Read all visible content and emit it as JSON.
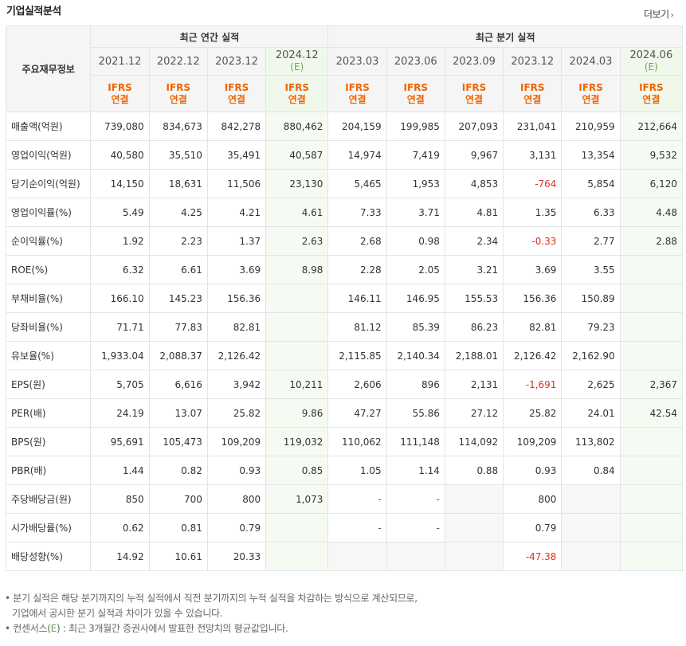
{
  "title": "기업실적분석",
  "more_label": "더보기",
  "more_arrow": "›",
  "header": {
    "row_label": "주요재무정보",
    "annual_group": "최근 연간 실적",
    "quarter_group": "최근 분기 실적",
    "periods": [
      {
        "label": "2021.12",
        "est": ""
      },
      {
        "label": "2022.12",
        "est": ""
      },
      {
        "label": "2023.12",
        "est": ""
      },
      {
        "label": "2024.12",
        "est": "(E)"
      },
      {
        "label": "2023.03",
        "est": ""
      },
      {
        "label": "2023.06",
        "est": ""
      },
      {
        "label": "2023.09",
        "est": ""
      },
      {
        "label": "2023.12",
        "est": ""
      },
      {
        "label": "2024.03",
        "est": ""
      },
      {
        "label": "2024.06",
        "est": "(E)"
      }
    ],
    "basis_top": "IFRS",
    "basis_bottom": "연결"
  },
  "rows": [
    {
      "label": "매출액(억원)",
      "values": [
        "739,080",
        "834,673",
        "842,278",
        "880,462",
        "204,159",
        "199,985",
        "207,093",
        "231,041",
        "210,959",
        "212,664"
      ]
    },
    {
      "label": "영업이익(억원)",
      "values": [
        "40,580",
        "35,510",
        "35,491",
        "40,587",
        "14,974",
        "7,419",
        "9,967",
        "3,131",
        "13,354",
        "9,532"
      ]
    },
    {
      "label": "당기순이익(억원)",
      "values": [
        "14,150",
        "18,631",
        "11,506",
        "23,130",
        "5,465",
        "1,953",
        "4,853",
        "-764",
        "5,854",
        "6,120"
      ]
    },
    {
      "label": "영업이익률(%)",
      "values": [
        "5.49",
        "4.25",
        "4.21",
        "4.61",
        "7.33",
        "3.71",
        "4.81",
        "1.35",
        "6.33",
        "4.48"
      ]
    },
    {
      "label": "순이익률(%)",
      "values": [
        "1.92",
        "2.23",
        "1.37",
        "2.63",
        "2.68",
        "0.98",
        "2.34",
        "-0.33",
        "2.77",
        "2.88"
      ]
    },
    {
      "label": "ROE(%)",
      "values": [
        "6.32",
        "6.61",
        "3.69",
        "8.98",
        "2.28",
        "2.05",
        "3.21",
        "3.69",
        "3.55",
        ""
      ]
    },
    {
      "label": "부채비율(%)",
      "values": [
        "166.10",
        "145.23",
        "156.36",
        "",
        "146.11",
        "146.95",
        "155.53",
        "156.36",
        "150.89",
        ""
      ]
    },
    {
      "label": "당좌비율(%)",
      "values": [
        "71.71",
        "77.83",
        "82.81",
        "",
        "81.12",
        "85.39",
        "86.23",
        "82.81",
        "79.23",
        ""
      ]
    },
    {
      "label": "유보율(%)",
      "values": [
        "1,933.04",
        "2,088.37",
        "2,126.42",
        "",
        "2,115.85",
        "2,140.34",
        "2,188.01",
        "2,126.42",
        "2,162.90",
        ""
      ]
    },
    {
      "label": "EPS(원)",
      "values": [
        "5,705",
        "6,616",
        "3,942",
        "10,211",
        "2,606",
        "896",
        "2,131",
        "-1,691",
        "2,625",
        "2,367"
      ]
    },
    {
      "label": "PER(배)",
      "values": [
        "24.19",
        "13.07",
        "25.82",
        "9.86",
        "47.27",
        "55.86",
        "27.12",
        "25.82",
        "24.01",
        "42.54"
      ]
    },
    {
      "label": "BPS(원)",
      "values": [
        "95,691",
        "105,473",
        "109,209",
        "119,032",
        "110,062",
        "111,148",
        "114,092",
        "109,209",
        "113,802",
        ""
      ]
    },
    {
      "label": "PBR(배)",
      "values": [
        "1.44",
        "0.82",
        "0.93",
        "0.85",
        "1.05",
        "1.14",
        "0.88",
        "0.93",
        "0.84",
        ""
      ]
    },
    {
      "label": "주당배당금(원)",
      "values": [
        "850",
        "700",
        "800",
        "1,073",
        "-",
        "-",
        "",
        "800",
        "",
        ""
      ]
    },
    {
      "label": "시가배당률(%)",
      "values": [
        "0.62",
        "0.81",
        "0.79",
        "",
        "-",
        "-",
        "",
        "0.79",
        "",
        ""
      ]
    },
    {
      "label": "배당성향(%)",
      "values": [
        "14.92",
        "10.61",
        "20.33",
        "",
        "",
        "",
        "",
        "-47.38",
        "",
        ""
      ]
    }
  ],
  "notes": {
    "line1": "분기 실적은 해당 분기까지의 누적 실적에서 직전 분기까지의 누적 실적을 차감하는 방식으로 계산되므로,",
    "line2": "기업에서 공시한 분기 실적과 차이가 있을 수 있습니다.",
    "line3_prefix": "컨센서스(",
    "line3_mark": "E",
    "line3_suffix": ") : 최근 3개월간 증권사에서 발표한 전망치의 평균값입니다."
  },
  "colors": {
    "accent_orange": "#f06400",
    "estimate_green": "#6aa84f",
    "negative_red": "#e0301e"
  }
}
